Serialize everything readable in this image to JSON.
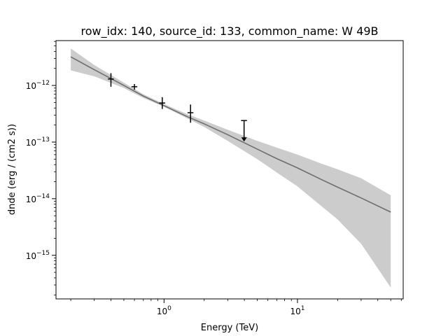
{
  "chart_data": {
    "type": "line",
    "title": "row_idx: 140, source_id: 133, common_name: W 49B",
    "xlabel": "Energy (TeV)",
    "ylabel": "dnde (erg / (cm2 s))",
    "xscale": "log",
    "yscale": "log",
    "xlim": [
      0.155,
      62
    ],
    "ylim": [
      1.7e-16,
      6.2e-12
    ],
    "x_ticks": [
      {
        "value": 1,
        "label": "10",
        "exp": "0"
      },
      {
        "value": 10,
        "label": "10",
        "exp": "1"
      }
    ],
    "y_ticks": [
      {
        "value": 1e-15,
        "label": "10",
        "exp": "−15"
      },
      {
        "value": 1e-14,
        "label": "10",
        "exp": "−14"
      },
      {
        "value": 1e-13,
        "label": "10",
        "exp": "−13"
      },
      {
        "value": 1e-12,
        "label": "10",
        "exp": "−12"
      }
    ],
    "grid": false,
    "model": {
      "energy": [
        0.2,
        0.3,
        0.5,
        0.7,
        1,
        1.5,
        2,
        3,
        5,
        7,
        10,
        15,
        20,
        30,
        50
      ],
      "dnde": [
        3.2e-12,
        1.9e-12,
        1e-12,
        6.5e-13,
        4.4e-13,
        2.8e-13,
        2.1e-13,
        1.35e-13,
        7.5e-14,
        5.1e-14,
        3.5e-14,
        2.2e-14,
        1.6e-14,
        1.03e-14,
        5.8e-15
      ],
      "band_upper": [
        4.5e-12,
        2.3e-12,
        1.12e-12,
        7e-13,
        4.7e-13,
        3.1e-13,
        2.4e-13,
        1.65e-13,
        1.05e-13,
        8e-14,
        6e-14,
        4.2e-14,
        3.3e-14,
        2.3e-14,
        1.15e-14
      ],
      "band_lower": [
        1.85e-12,
        1.45e-12,
        9e-13,
        6e-13,
        4.2e-13,
        2.6e-13,
        1.85e-13,
        1.05e-13,
        5e-14,
        2.9e-14,
        1.65e-14,
        7.5e-15,
        4.3e-15,
        1.6e-15,
        2.7e-16
      ]
    },
    "points": [
      {
        "x": 0.4,
        "y": 1.3e-12,
        "yerr_low": 9.5e-13,
        "yerr_high": 1.65e-12,
        "xerr_low": 0.38,
        "xerr_high": 0.42,
        "ul": false
      },
      {
        "x": 0.6,
        "y": 9.5e-13,
        "yerr_low": 8.4e-13,
        "yerr_high": 1.06e-12,
        "xerr_low": 0.57,
        "xerr_high": 0.63,
        "ul": false
      },
      {
        "x": 0.97,
        "y": 4.9e-13,
        "yerr_low": 3.85e-13,
        "yerr_high": 6.2e-13,
        "xerr_low": 0.92,
        "xerr_high": 1.02,
        "ul": false
      },
      {
        "x": 1.58,
        "y": 3.3e-13,
        "yerr_low": 2.2e-13,
        "yerr_high": 4.6e-13,
        "xerr_low": 1.5,
        "xerr_high": 1.66,
        "ul": false
      },
      {
        "x": 3.98,
        "y": 2.4e-13,
        "ul_to": 1.05e-13,
        "xerr_low": 3.78,
        "xerr_high": 4.18,
        "ul": true
      }
    ],
    "colors": {
      "line": "#6e6e6e",
      "band": "#cccccc",
      "points": "#000000"
    }
  }
}
